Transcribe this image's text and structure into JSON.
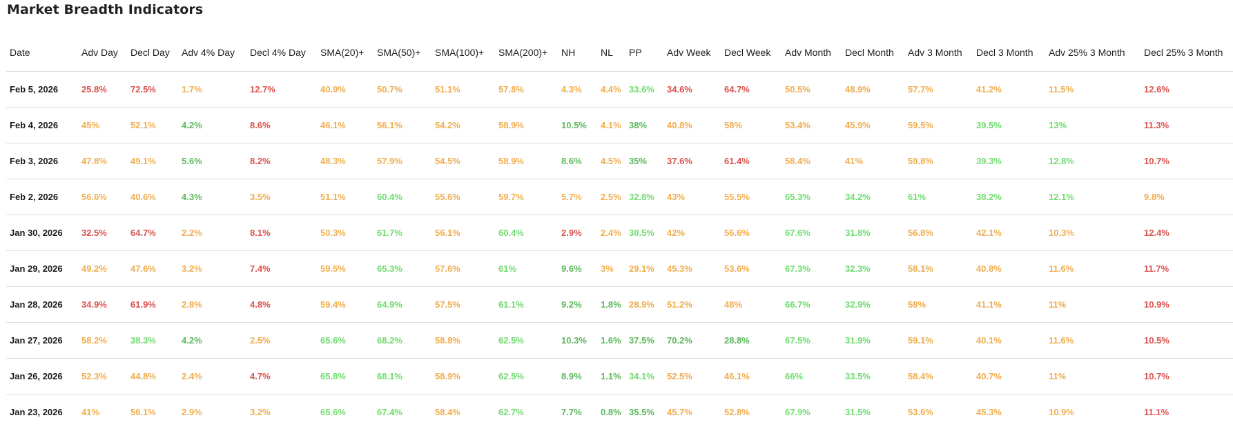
{
  "page": {
    "title": "Market Breadth Indicators"
  },
  "colors": {
    "red": "#d9534f",
    "yellow": "#f0ad4e",
    "dark_green": "#5cb85c",
    "light_green": "#6fdc6f"
  },
  "table": {
    "columns": [
      "Date",
      "Adv Day",
      "Decl Day",
      "Adv 4% Day",
      "Decl 4% Day",
      "SMA(20)+",
      "SMA(50)+",
      "SMA(100)+",
      "SMA(200)+",
      "NH",
      "NL",
      "PP",
      "Adv Week",
      "Decl Week",
      "Adv Month",
      "Decl Month",
      "Adv 3 Month",
      "Decl 3 Month",
      "Adv 25% 3 Month",
      "Decl 25% 3 Month"
    ],
    "rows": [
      {
        "date": "Feb 5, 2026",
        "cells": [
          {
            "v": "25.8%",
            "c": "red"
          },
          {
            "v": "72.5%",
            "c": "red"
          },
          {
            "v": "1.7%",
            "c": "yellow"
          },
          {
            "v": "12.7%",
            "c": "red"
          },
          {
            "v": "40.9%",
            "c": "yellow"
          },
          {
            "v": "50.7%",
            "c": "yellow"
          },
          {
            "v": "51.1%",
            "c": "yellow"
          },
          {
            "v": "57.8%",
            "c": "yellow"
          },
          {
            "v": "4.3%",
            "c": "yellow"
          },
          {
            "v": "4.4%",
            "c": "yellow"
          },
          {
            "v": "33.6%",
            "c": "lgreen"
          },
          {
            "v": "34.6%",
            "c": "red"
          },
          {
            "v": "64.7%",
            "c": "red"
          },
          {
            "v": "50.5%",
            "c": "yellow"
          },
          {
            "v": "48.9%",
            "c": "yellow"
          },
          {
            "v": "57.7%",
            "c": "yellow"
          },
          {
            "v": "41.2%",
            "c": "yellow"
          },
          {
            "v": "11.5%",
            "c": "yellow"
          },
          {
            "v": "12.6%",
            "c": "red"
          }
        ]
      },
      {
        "date": "Feb 4, 2026",
        "cells": [
          {
            "v": "45%",
            "c": "yellow"
          },
          {
            "v": "52.1%",
            "c": "yellow"
          },
          {
            "v": "4.2%",
            "c": "dgreen"
          },
          {
            "v": "8.6%",
            "c": "red"
          },
          {
            "v": "46.1%",
            "c": "yellow"
          },
          {
            "v": "56.1%",
            "c": "yellow"
          },
          {
            "v": "54.2%",
            "c": "yellow"
          },
          {
            "v": "58.9%",
            "c": "yellow"
          },
          {
            "v": "10.5%",
            "c": "dgreen"
          },
          {
            "v": "4.1%",
            "c": "yellow"
          },
          {
            "v": "38%",
            "c": "dgreen"
          },
          {
            "v": "40.8%",
            "c": "yellow"
          },
          {
            "v": "58%",
            "c": "yellow"
          },
          {
            "v": "53.4%",
            "c": "yellow"
          },
          {
            "v": "45.9%",
            "c": "yellow"
          },
          {
            "v": "59.5%",
            "c": "yellow"
          },
          {
            "v": "39.5%",
            "c": "lgreen"
          },
          {
            "v": "13%",
            "c": "lgreen"
          },
          {
            "v": "11.3%",
            "c": "red"
          }
        ]
      },
      {
        "date": "Feb 3, 2026",
        "cells": [
          {
            "v": "47.8%",
            "c": "yellow"
          },
          {
            "v": "49.1%",
            "c": "yellow"
          },
          {
            "v": "5.6%",
            "c": "dgreen"
          },
          {
            "v": "8.2%",
            "c": "red"
          },
          {
            "v": "48.3%",
            "c": "yellow"
          },
          {
            "v": "57.9%",
            "c": "yellow"
          },
          {
            "v": "54.5%",
            "c": "yellow"
          },
          {
            "v": "58.9%",
            "c": "yellow"
          },
          {
            "v": "8.6%",
            "c": "dgreen"
          },
          {
            "v": "4.5%",
            "c": "yellow"
          },
          {
            "v": "35%",
            "c": "dgreen"
          },
          {
            "v": "37.6%",
            "c": "red"
          },
          {
            "v": "61.4%",
            "c": "red"
          },
          {
            "v": "58.4%",
            "c": "yellow"
          },
          {
            "v": "41%",
            "c": "yellow"
          },
          {
            "v": "59.8%",
            "c": "yellow"
          },
          {
            "v": "39.3%",
            "c": "lgreen"
          },
          {
            "v": "12.8%",
            "c": "lgreen"
          },
          {
            "v": "10.7%",
            "c": "red"
          }
        ]
      },
      {
        "date": "Feb 2, 2026",
        "cells": [
          {
            "v": "56.6%",
            "c": "yellow"
          },
          {
            "v": "40.6%",
            "c": "yellow"
          },
          {
            "v": "4.3%",
            "c": "dgreen"
          },
          {
            "v": "3.5%",
            "c": "yellow"
          },
          {
            "v": "51.1%",
            "c": "yellow"
          },
          {
            "v": "60.4%",
            "c": "lgreen"
          },
          {
            "v": "55.6%",
            "c": "yellow"
          },
          {
            "v": "59.7%",
            "c": "yellow"
          },
          {
            "v": "5.7%",
            "c": "yellow"
          },
          {
            "v": "2.5%",
            "c": "yellow"
          },
          {
            "v": "32.8%",
            "c": "lgreen"
          },
          {
            "v": "43%",
            "c": "yellow"
          },
          {
            "v": "55.5%",
            "c": "yellow"
          },
          {
            "v": "65.3%",
            "c": "lgreen"
          },
          {
            "v": "34.2%",
            "c": "lgreen"
          },
          {
            "v": "61%",
            "c": "lgreen"
          },
          {
            "v": "38.2%",
            "c": "lgreen"
          },
          {
            "v": "12.1%",
            "c": "lgreen"
          },
          {
            "v": "9.8%",
            "c": "yellow"
          }
        ]
      },
      {
        "date": "Jan 30, 2026",
        "cells": [
          {
            "v": "32.5%",
            "c": "red"
          },
          {
            "v": "64.7%",
            "c": "red"
          },
          {
            "v": "2.2%",
            "c": "yellow"
          },
          {
            "v": "8.1%",
            "c": "red"
          },
          {
            "v": "50.3%",
            "c": "yellow"
          },
          {
            "v": "61.7%",
            "c": "lgreen"
          },
          {
            "v": "56.1%",
            "c": "yellow"
          },
          {
            "v": "60.4%",
            "c": "lgreen"
          },
          {
            "v": "2.9%",
            "c": "red"
          },
          {
            "v": "2.4%",
            "c": "yellow"
          },
          {
            "v": "30.5%",
            "c": "lgreen"
          },
          {
            "v": "42%",
            "c": "yellow"
          },
          {
            "v": "56.6%",
            "c": "yellow"
          },
          {
            "v": "67.6%",
            "c": "lgreen"
          },
          {
            "v": "31.8%",
            "c": "lgreen"
          },
          {
            "v": "56.8%",
            "c": "yellow"
          },
          {
            "v": "42.1%",
            "c": "yellow"
          },
          {
            "v": "10.3%",
            "c": "yellow"
          },
          {
            "v": "12.4%",
            "c": "red"
          }
        ]
      },
      {
        "date": "Jan 29, 2026",
        "cells": [
          {
            "v": "49.2%",
            "c": "yellow"
          },
          {
            "v": "47.6%",
            "c": "yellow"
          },
          {
            "v": "3.2%",
            "c": "yellow"
          },
          {
            "v": "7.4%",
            "c": "red"
          },
          {
            "v": "59.5%",
            "c": "yellow"
          },
          {
            "v": "65.3%",
            "c": "lgreen"
          },
          {
            "v": "57.6%",
            "c": "yellow"
          },
          {
            "v": "61%",
            "c": "lgreen"
          },
          {
            "v": "9.6%",
            "c": "dgreen"
          },
          {
            "v": "3%",
            "c": "yellow"
          },
          {
            "v": "29.1%",
            "c": "yellow"
          },
          {
            "v": "45.3%",
            "c": "yellow"
          },
          {
            "v": "53.6%",
            "c": "yellow"
          },
          {
            "v": "67.3%",
            "c": "lgreen"
          },
          {
            "v": "32.3%",
            "c": "lgreen"
          },
          {
            "v": "58.1%",
            "c": "yellow"
          },
          {
            "v": "40.8%",
            "c": "yellow"
          },
          {
            "v": "11.6%",
            "c": "yellow"
          },
          {
            "v": "11.7%",
            "c": "red"
          }
        ]
      },
      {
        "date": "Jan 28, 2026",
        "cells": [
          {
            "v": "34.9%",
            "c": "red"
          },
          {
            "v": "61.9%",
            "c": "red"
          },
          {
            "v": "2.8%",
            "c": "yellow"
          },
          {
            "v": "4.8%",
            "c": "red"
          },
          {
            "v": "59.4%",
            "c": "yellow"
          },
          {
            "v": "64.9%",
            "c": "lgreen"
          },
          {
            "v": "57.5%",
            "c": "yellow"
          },
          {
            "v": "61.1%",
            "c": "lgreen"
          },
          {
            "v": "9.2%",
            "c": "dgreen"
          },
          {
            "v": "1.8%",
            "c": "dgreen"
          },
          {
            "v": "28.9%",
            "c": "yellow"
          },
          {
            "v": "51.2%",
            "c": "yellow"
          },
          {
            "v": "48%",
            "c": "yellow"
          },
          {
            "v": "66.7%",
            "c": "lgreen"
          },
          {
            "v": "32.9%",
            "c": "lgreen"
          },
          {
            "v": "58%",
            "c": "yellow"
          },
          {
            "v": "41.1%",
            "c": "yellow"
          },
          {
            "v": "11%",
            "c": "yellow"
          },
          {
            "v": "10.9%",
            "c": "red"
          }
        ]
      },
      {
        "date": "Jan 27, 2026",
        "cells": [
          {
            "v": "58.2%",
            "c": "yellow"
          },
          {
            "v": "38.3%",
            "c": "lgreen"
          },
          {
            "v": "4.2%",
            "c": "dgreen"
          },
          {
            "v": "2.5%",
            "c": "yellow"
          },
          {
            "v": "65.6%",
            "c": "lgreen"
          },
          {
            "v": "68.2%",
            "c": "lgreen"
          },
          {
            "v": "58.8%",
            "c": "yellow"
          },
          {
            "v": "62.5%",
            "c": "lgreen"
          },
          {
            "v": "10.3%",
            "c": "dgreen"
          },
          {
            "v": "1.6%",
            "c": "dgreen"
          },
          {
            "v": "37.5%",
            "c": "dgreen"
          },
          {
            "v": "70.2%",
            "c": "dgreen"
          },
          {
            "v": "28.8%",
            "c": "dgreen"
          },
          {
            "v": "67.5%",
            "c": "lgreen"
          },
          {
            "v": "31.9%",
            "c": "lgreen"
          },
          {
            "v": "59.1%",
            "c": "yellow"
          },
          {
            "v": "40.1%",
            "c": "yellow"
          },
          {
            "v": "11.6%",
            "c": "yellow"
          },
          {
            "v": "10.5%",
            "c": "red"
          }
        ]
      },
      {
        "date": "Jan 26, 2026",
        "cells": [
          {
            "v": "52.3%",
            "c": "yellow"
          },
          {
            "v": "44.8%",
            "c": "yellow"
          },
          {
            "v": "2.4%",
            "c": "yellow"
          },
          {
            "v": "4.7%",
            "c": "red"
          },
          {
            "v": "65.8%",
            "c": "lgreen"
          },
          {
            "v": "68.1%",
            "c": "lgreen"
          },
          {
            "v": "58.9%",
            "c": "yellow"
          },
          {
            "v": "62.5%",
            "c": "lgreen"
          },
          {
            "v": "8.9%",
            "c": "dgreen"
          },
          {
            "v": "1.1%",
            "c": "dgreen"
          },
          {
            "v": "34.1%",
            "c": "lgreen"
          },
          {
            "v": "52.5%",
            "c": "yellow"
          },
          {
            "v": "46.1%",
            "c": "yellow"
          },
          {
            "v": "66%",
            "c": "lgreen"
          },
          {
            "v": "33.5%",
            "c": "lgreen"
          },
          {
            "v": "58.4%",
            "c": "yellow"
          },
          {
            "v": "40.7%",
            "c": "yellow"
          },
          {
            "v": "11%",
            "c": "yellow"
          },
          {
            "v": "10.7%",
            "c": "red"
          }
        ]
      },
      {
        "date": "Jan 23, 2026",
        "cells": [
          {
            "v": "41%",
            "c": "yellow"
          },
          {
            "v": "56.1%",
            "c": "yellow"
          },
          {
            "v": "2.9%",
            "c": "yellow"
          },
          {
            "v": "3.2%",
            "c": "yellow"
          },
          {
            "v": "65.6%",
            "c": "lgreen"
          },
          {
            "v": "67.4%",
            "c": "lgreen"
          },
          {
            "v": "58.4%",
            "c": "yellow"
          },
          {
            "v": "62.7%",
            "c": "lgreen"
          },
          {
            "v": "7.7%",
            "c": "dgreen"
          },
          {
            "v": "0.8%",
            "c": "dgreen"
          },
          {
            "v": "35.5%",
            "c": "dgreen"
          },
          {
            "v": "45.7%",
            "c": "yellow"
          },
          {
            "v": "52.8%",
            "c": "yellow"
          },
          {
            "v": "67.9%",
            "c": "lgreen"
          },
          {
            "v": "31.5%",
            "c": "lgreen"
          },
          {
            "v": "53.6%",
            "c": "yellow"
          },
          {
            "v": "45.3%",
            "c": "yellow"
          },
          {
            "v": "10.9%",
            "c": "yellow"
          },
          {
            "v": "11.1%",
            "c": "red"
          }
        ]
      }
    ]
  }
}
